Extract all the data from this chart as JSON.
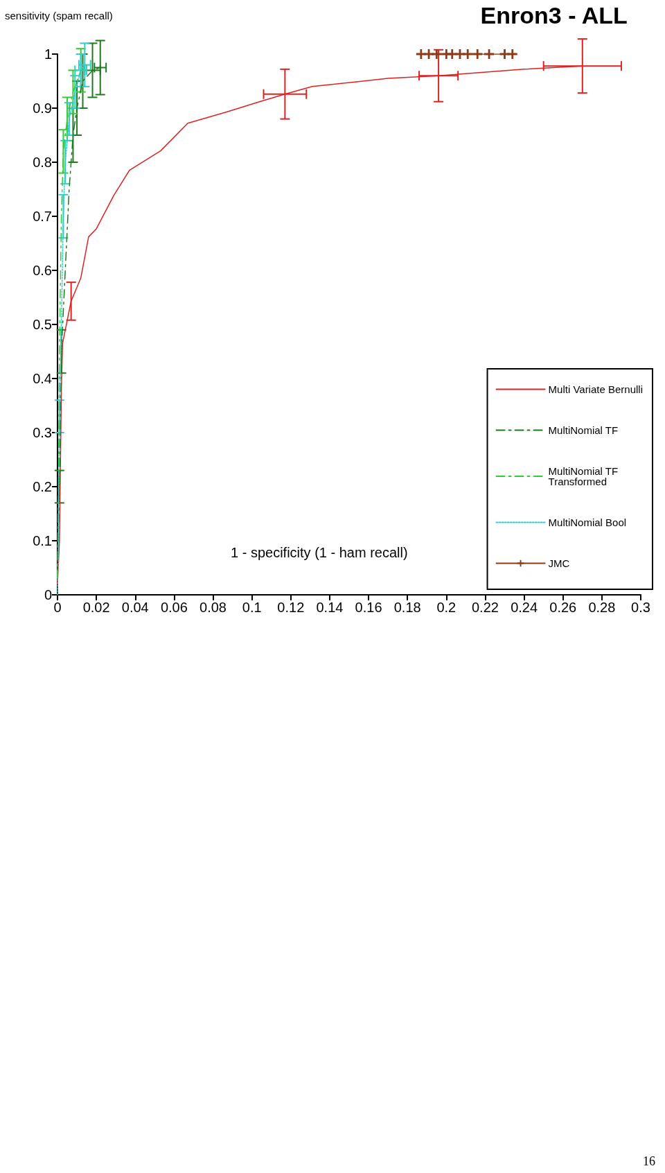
{
  "chart_data": {
    "type": "line",
    "title": "Enron3 - ALL",
    "ylabel": "sensitivity (spam recall)",
    "xlabel": "1 - specificity (1 - ham recall)",
    "annotations": [
      "16"
    ],
    "xlim": [
      0,
      0.3
    ],
    "xticks": [
      0,
      0.02,
      0.04,
      0.06,
      0.08,
      0.1,
      0.12,
      0.14,
      0.16,
      0.18,
      0.2,
      0.22,
      0.24,
      0.26,
      0.28,
      0.3
    ],
    "ylim": [
      0,
      1
    ],
    "yticks": [
      0,
      0.1,
      0.2,
      0.3,
      0.4,
      0.5,
      0.6,
      0.7,
      0.8,
      0.9,
      1
    ],
    "grid": false,
    "legend": "bottom right",
    "marker": "none",
    "series": [
      {
        "name": "Multi Variate Bernulli",
        "color": "#dd2222",
        "line_style": "solid",
        "x": [
          0,
          0.001,
          0.002,
          0.0026,
          0.007,
          0.012,
          0.016,
          0.02,
          0.029,
          0.037,
          0.053,
          0.067,
          0.087,
          0.103,
          0.117,
          0.131,
          0.17,
          0.196,
          0.24,
          0.27
        ],
        "values": [
          0.02,
          0.1,
          0.38,
          0.465,
          0.543,
          0.586,
          0.662,
          0.677,
          0.739,
          0.785,
          0.821,
          0.872,
          0.893,
          0.911,
          0.926,
          0.94,
          0.955,
          0.96,
          0.972,
          0.978
        ],
        "errors": [
          null,
          null,
          null,
          null,
          0.035,
          null,
          null,
          null,
          null,
          null,
          null,
          null,
          null,
          null,
          0.046,
          null,
          null,
          0.048,
          null,
          0.05
        ],
        "xerrors": [
          null,
          null,
          null,
          null,
          null,
          null,
          null,
          null,
          null,
          null,
          null,
          null,
          null,
          null,
          0.011,
          null,
          null,
          0.01,
          null,
          0.02
        ]
      },
      {
        "name": "MultiNomial TF",
        "color": "#1f7a1f",
        "line_style": "dashed",
        "x": [
          0,
          0.001,
          0.002,
          0.004,
          0.006,
          0.008,
          0.01,
          0.013,
          0.018,
          0.022
        ],
        "values": [
          0.03,
          0.2,
          0.45,
          0.6,
          0.75,
          0.85,
          0.9,
          0.95,
          0.97,
          0.975
        ],
        "errors": [
          null,
          0.03,
          0.04,
          null,
          null,
          0.05,
          0.05,
          0.05,
          0.05,
          0.05
        ],
        "xerrors": [
          null,
          null,
          null,
          null,
          null,
          null,
          null,
          null,
          0.004,
          0.003
        ]
      },
      {
        "name": "MultiNomial TF Transformed",
        "color": "#33cc33",
        "line_style": "dashed",
        "x": [
          0,
          0.0005,
          0.001,
          0.002,
          0.003,
          0.005,
          0.008,
          0.012,
          0.015
        ],
        "values": [
          0.03,
          0.2,
          0.45,
          0.7,
          0.82,
          0.88,
          0.93,
          0.97,
          0.98
        ],
        "errors": [
          null,
          null,
          null,
          null,
          0.04,
          0.04,
          0.04,
          0.04,
          null
        ],
        "xerrors": [
          null,
          null,
          null,
          null,
          null,
          null,
          null,
          null,
          null
        ]
      },
      {
        "name": "MultiNomial Bool",
        "color": "#33cccc",
        "line_style": "dotted",
        "x": [
          0,
          0.0003,
          0.001,
          0.002,
          0.003,
          0.004,
          0.006,
          0.009,
          0.012,
          0.014
        ],
        "values": [
          0,
          0.06,
          0.33,
          0.5,
          0.7,
          0.8,
          0.88,
          0.93,
          0.97,
          0.98
        ],
        "errors": [
          null,
          null,
          0.03,
          null,
          0.04,
          0.04,
          0.03,
          0.03,
          0.03,
          0.04
        ],
        "xerrors": [
          null,
          null,
          null,
          null,
          null,
          null,
          null,
          null,
          0.003,
          0.003
        ]
      },
      {
        "name": "JMC",
        "color": "#8b3a1a",
        "line_style": "solid",
        "marker": "cross",
        "x": [
          0.187,
          0.191,
          0.195,
          0.2,
          0.203,
          0.207,
          0.211,
          0.216,
          0.222,
          0.23,
          0.234
        ],
        "values": [
          1,
          1,
          1,
          1,
          1,
          1,
          1,
          1,
          1,
          1,
          1
        ]
      }
    ]
  }
}
